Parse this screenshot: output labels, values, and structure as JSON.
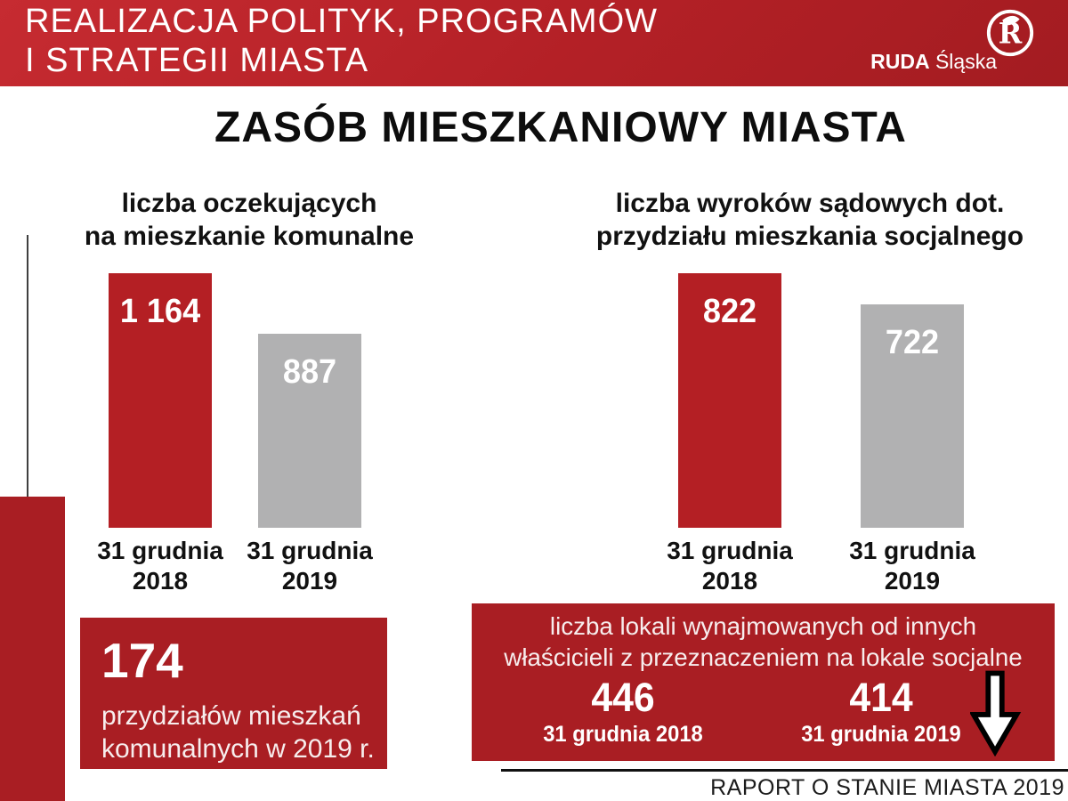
{
  "colors": {
    "header_red": "#b32026",
    "bar_red": "#b41f24",
    "bar_gray": "#b1b1b2",
    "box_red": "#a91e23",
    "text_dark": "#111111",
    "text_white": "#ffffff"
  },
  "header": {
    "line1": "REALIZACJA POLITYK, PROGRAMÓW",
    "line2": "I STRATEGII MIASTA",
    "logo": {
      "brand_bold": "RUDA",
      "brand_light": "Śląska",
      "emblem_letter": "R"
    }
  },
  "title": "ZASÓB MIESZKANIOWY MIASTA",
  "chart_data": [
    {
      "type": "bar",
      "title": "liczba oczekujących na mieszkanie komunalne",
      "title_lines": [
        "liczba oczekujących",
        "na mieszkanie komunalne"
      ],
      "categories": [
        "31 grudnia 2018",
        "31 grudnia 2019"
      ],
      "category_lines": [
        [
          "31 grudnia",
          "2018"
        ],
        [
          "31 grudnia",
          "2019"
        ]
      ],
      "values": [
        1164,
        887
      ],
      "values_display": [
        "1 164",
        "887"
      ],
      "bar_colors": [
        "#b41f24",
        "#b1b1b2"
      ],
      "ylim": [
        0,
        1164
      ],
      "grid": false,
      "legend": false,
      "value_label_position": "inside-top"
    },
    {
      "type": "bar",
      "title": "liczba wyroków sądowych dot. przydziału mieszkania socjalnego",
      "title_lines": [
        "liczba wyroków sądowych dot.",
        "przydziału mieszkania socjalnego"
      ],
      "categories": [
        "31 grudnia 2018",
        "31 grudnia 2019"
      ],
      "category_lines": [
        [
          "31 grudnia",
          "2018"
        ],
        [
          "31 grudnia",
          "2019"
        ]
      ],
      "values": [
        822,
        722
      ],
      "values_display": [
        "822",
        "722"
      ],
      "bar_colors": [
        "#b41f24",
        "#b1b1b2"
      ],
      "ylim": [
        0,
        822
      ],
      "grid": false,
      "legend": false,
      "value_label_position": "inside-top"
    }
  ],
  "stat_left": {
    "value": "174",
    "desc_lines": [
      "przydziałów mieszkań",
      "komunalnych w 2019 r."
    ]
  },
  "stat_right": {
    "title_lines": [
      "liczba lokali wynajmowanych od innych",
      "właścicieli z przeznaczeniem na lokale socjalne"
    ],
    "stats": [
      {
        "value": "446",
        "label": "31 grudnia 2018"
      },
      {
        "value": "414",
        "label": "31 grudnia 2019"
      }
    ],
    "icon": "down-arrow"
  },
  "footer": {
    "text": "RAPORT O STANIE MIASTA 2019"
  }
}
